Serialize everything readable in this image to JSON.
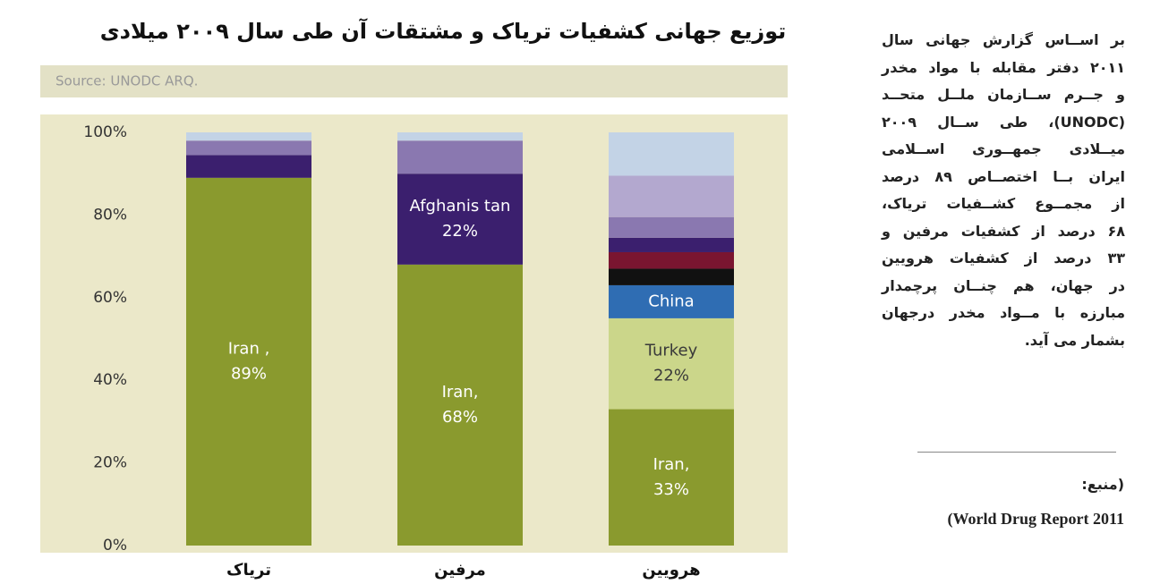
{
  "chart_data": {
    "type": "stacked_bar",
    "title": "توزیع جهانی کشفیات تریاک و مشتقات آن طی سال ۲۰۰۹ میلادی",
    "source": "Source: UNODC ARQ.",
    "categories": [
      "تریاک",
      "مرفین",
      "هرویین"
    ],
    "ylim": [
      0,
      100
    ],
    "yticks": [
      {
        "value": 0,
        "label": "0%"
      },
      {
        "value": 20,
        "label": "20%"
      },
      {
        "value": 40,
        "label": "40%"
      },
      {
        "value": 60,
        "label": "60%"
      },
      {
        "value": 80,
        "label": "80%"
      },
      {
        "value": 100,
        "label": "100%"
      }
    ],
    "series": [
      {
        "color": "#8a9a2e",
        "label_color": "#ffffff",
        "values": [
          89,
          68,
          33
        ],
        "value_labels": [
          [
            "Iran ,",
            "89%"
          ],
          [
            "Iran,",
            "68%"
          ],
          [
            "Iran,",
            "33%"
          ]
        ]
      },
      {
        "color": "#cbd68a",
        "label_color": "#3a3a3a",
        "values": [
          null,
          null,
          22
        ],
        "value_labels": [
          null,
          null,
          [
            "Turkey",
            "22%"
          ]
        ]
      },
      {
        "color": "#2f6db3",
        "label_color": "#ffffff",
        "values": [
          null,
          null,
          8
        ],
        "value_labels": [
          null,
          null,
          [
            "China"
          ]
        ]
      },
      {
        "color": "#111111",
        "values": [
          null,
          null,
          4
        ]
      },
      {
        "color": "#7a1530",
        "values": [
          null,
          null,
          4
        ]
      },
      {
        "color": "#3b1f6e",
        "label_color": "#ffffff",
        "values": [
          5.5,
          22,
          3.5
        ],
        "value_labels": [
          null,
          [
            "Afghanis tan",
            "22%"
          ],
          null
        ]
      },
      {
        "color": "#8a78b0",
        "values": [
          3.5,
          8,
          5
        ]
      },
      {
        "color": "#b3a8cf",
        "values": [
          null,
          null,
          10
        ]
      },
      {
        "color": "#c3d3e6",
        "values": [
          2,
          2,
          10.5
        ]
      }
    ]
  },
  "sidebar": {
    "lines": [
      "بر اســاس گزارش جهانی سال",
      "۲۰۱۱ دفتر مقابله با مواد مخدر",
      "و جــرم ســازمان ملــل متحــد",
      "(UNODC)، طی ســال ۲۰۰۹",
      "میــلادی جمهــوری اســلامی",
      "ایران بــا اختصــاص ۸۹ درصد",
      "از مجمــوع کشــفیات تریاک،",
      "۶۸ درصد از کشفیات مرفین و",
      "۳۳ درصد از کشفیات هرویین",
      "در جهان، هم چنــان پرچمدار",
      "مبارزه با مــواد مخدر درجهان",
      "بشمار می آید."
    ],
    "source_label": "(منبع:",
    "source_text": "(World Drug Report 2011"
  }
}
